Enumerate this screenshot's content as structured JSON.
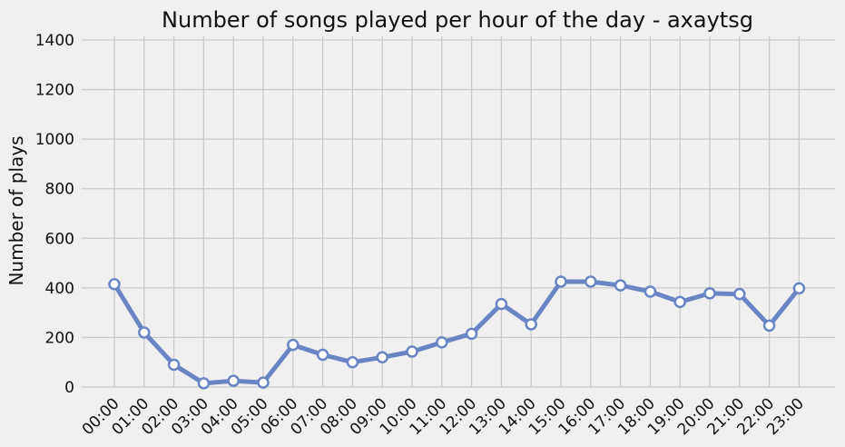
{
  "chart_data": {
    "type": "line",
    "title": "Number of songs played per hour of the day - axaytsg",
    "xlabel": "",
    "ylabel": "Number of plays",
    "categories": [
      "00:00",
      "01:00",
      "02:00",
      "03:00",
      "04:00",
      "05:00",
      "06:00",
      "07:00",
      "08:00",
      "09:00",
      "10:00",
      "11:00",
      "12:00",
      "13:00",
      "14:00",
      "15:00",
      "16:00",
      "17:00",
      "18:00",
      "19:00",
      "20:00",
      "21:00",
      "22:00",
      "23:00"
    ],
    "series": [
      {
        "color": "#6a85c4",
        "values": [
          415,
          220,
          90,
          15,
          25,
          18,
          170,
          130,
          100,
          120,
          143,
          180,
          215,
          335,
          253,
          425,
          425,
          410,
          385,
          343,
          378,
          375,
          248,
          398
        ]
      }
    ],
    "ylim": [
      0,
      1400
    ],
    "yticks": [
      0,
      200,
      400,
      600,
      800,
      1000,
      1200,
      1400
    ],
    "grid": true,
    "legend": "none"
  }
}
